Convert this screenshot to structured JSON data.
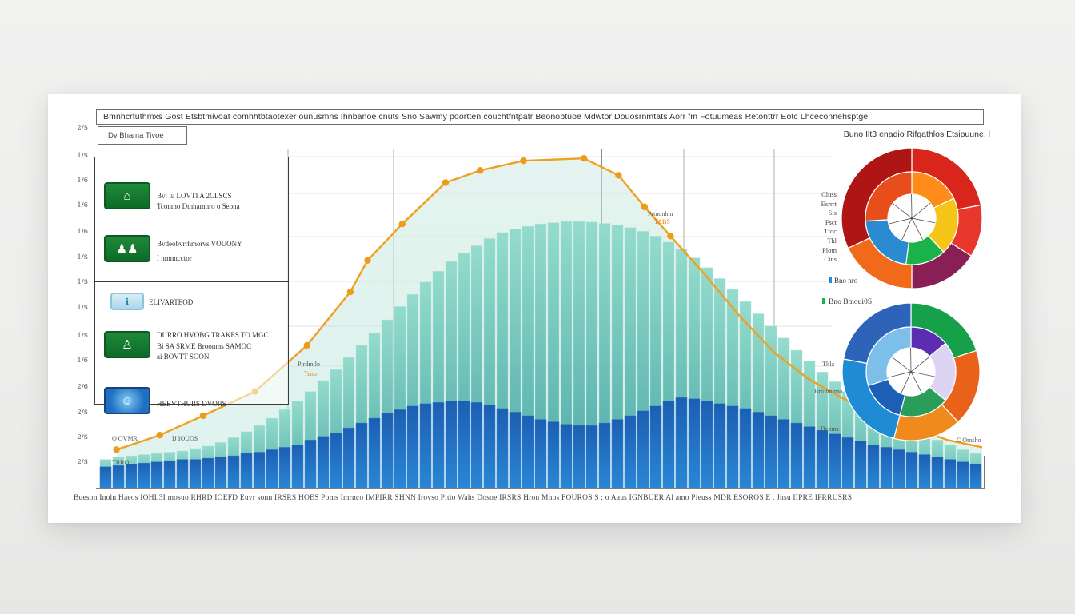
{
  "chart_data": [
    {
      "type": "bar",
      "title": "Bmnhcrtuthmxs Gost Etsbtmivoat comhhtbtaotexer ounusmns Ihnbanoe cnuts Sno Sawmy poortten couchtfntpatr Beonobtuoe Mdwtor Douosrnmtats Aorr fm Fotuumeas Retonttrr Eotc Lhceconnehsptge",
      "subtitle": "Dv Bhama Tivoe",
      "y_tick_labels": [
        "2/$",
        "1/$",
        "1/6",
        "1/6",
        "1/6",
        "1/$",
        "1/$",
        "1/$",
        "1/$",
        "1/6",
        "2/6",
        "2/$",
        "2/$",
        "2/$"
      ],
      "x_tick_labels": "Bueson Inoln Haeos IOHL3I mosuo RHRD IOEFD Euvr sonn IRSRS HOES Poms Imrnco IMPIRR SHNN Irovso Pitio Wahs Dosoe IRSRS Hron Mnos FOUROS S ; o Aaus IGNBUER Al amo Pieuss MDR ESOROS E . Jnsu IIPRE IPRRUSRS",
      "ylim": [
        0,
        14
      ],
      "x_count": 69,
      "series": [
        {
          "values": [
            1.2,
            1.3,
            1.35,
            1.4,
            1.45,
            1.5,
            1.55,
            1.65,
            1.75,
            1.9,
            2.1,
            2.35,
            2.6,
            2.9,
            3.25,
            3.6,
            4.0,
            4.45,
            4.9,
            5.4,
            5.9,
            6.4,
            6.95,
            7.5,
            8.0,
            8.5,
            8.95,
            9.35,
            9.7,
            10.0,
            10.3,
            10.55,
            10.7,
            10.8,
            10.9,
            10.95,
            11.0,
            11.0,
            10.98,
            10.92,
            10.85,
            10.75,
            10.6,
            10.4,
            10.15,
            9.85,
            9.5,
            9.1,
            8.65,
            8.2,
            7.7,
            7.2,
            6.7,
            6.2,
            5.7,
            5.25,
            4.8,
            4.4,
            4.0,
            3.65,
            3.3,
            3.0,
            2.7,
            2.45,
            2.2,
            2.0,
            1.8,
            1.6,
            1.45
          ]
        },
        {
          "values": [
            0.9,
            0.95,
            1.0,
            1.05,
            1.1,
            1.15,
            1.2,
            1.2,
            1.25,
            1.3,
            1.35,
            1.45,
            1.5,
            1.6,
            1.7,
            1.8,
            2.0,
            2.15,
            2.3,
            2.5,
            2.7,
            2.9,
            3.1,
            3.25,
            3.4,
            3.5,
            3.55,
            3.6,
            3.6,
            3.55,
            3.45,
            3.3,
            3.15,
            3.0,
            2.85,
            2.75,
            2.65,
            2.6,
            2.6,
            2.7,
            2.85,
            3.0,
            3.2,
            3.4,
            3.6,
            3.75,
            3.7,
            3.6,
            3.5,
            3.4,
            3.3,
            3.15,
            3.0,
            2.85,
            2.7,
            2.55,
            2.4,
            2.25,
            2.1,
            1.95,
            1.8,
            1.7,
            1.6,
            1.5,
            1.4,
            1.3,
            1.2,
            1.1,
            1.0
          ]
        }
      ],
      "line": {
        "points": [
          {
            "x": 2,
            "y": 1.6
          },
          {
            "x": 7,
            "y": 2.2
          },
          {
            "x": 12,
            "y": 3.0
          },
          {
            "x": 18,
            "y": 4.0
          },
          {
            "x": 24,
            "y": 5.9
          },
          {
            "x": 29,
            "y": 8.1
          },
          {
            "x": 31,
            "y": 9.4
          },
          {
            "x": 35,
            "y": 10.9
          },
          {
            "x": 40,
            "y": 12.6
          },
          {
            "x": 44,
            "y": 13.1
          },
          {
            "x": 49,
            "y": 13.5
          },
          {
            "x": 56,
            "y": 13.6
          },
          {
            "x": 60,
            "y": 12.9
          },
          {
            "x": 63,
            "y": 11.6
          },
          {
            "x": 66,
            "y": 10.4
          }
        ],
        "tail": [
          {
            "x": 66,
            "y": 10.4
          },
          {
            "x": 70,
            "y": 8.8
          },
          {
            "x": 74,
            "y": 7.1
          },
          {
            "x": 78,
            "y": 5.6
          },
          {
            "x": 82,
            "y": 4.5
          },
          {
            "x": 86,
            "y": 3.7
          },
          {
            "x": 90,
            "y": 3.0
          },
          {
            "x": 94,
            "y": 2.5
          },
          {
            "x": 98,
            "y": 2.0
          },
          {
            "x": 102,
            "y": 1.7
          }
        ],
        "color": "#f0a020"
      },
      "colors": {
        "series0": "#7ed0c4",
        "series1": "#1e66b8",
        "line": "#f0a020",
        "area": "#c9e8e0"
      },
      "grid": true
    },
    {
      "type": "pie",
      "rings": [
        {
          "values": [
            22,
            12,
            16,
            18,
            32
          ],
          "colors": [
            "#d9261c",
            "#e8382e",
            "#8a1f55",
            "#f06a1a",
            "#b01515"
          ]
        },
        {
          "values": [
            18,
            20,
            14,
            22,
            26
          ],
          "colors": [
            "#ff8c1a",
            "#f5c518",
            "#19b34a",
            "#2a8bd1",
            "#e84e1c"
          ]
        }
      ]
    },
    {
      "type": "pie",
      "rings": [
        {
          "values": [
            20,
            18,
            16,
            24,
            22
          ],
          "colors": [
            "#16a04a",
            "#e8621a",
            "#f08a1c",
            "#1f8bd4",
            "#2d63b8"
          ]
        },
        {
          "values": [
            14,
            22,
            18,
            16,
            30
          ],
          "colors": [
            "#5b2db0",
            "#dcd4f2",
            "#2a9d5a",
            "#1d5fb6",
            "#7bbfea"
          ]
        }
      ]
    }
  ],
  "header": {
    "title": "Bmnhcrtuthmxs Gost Etsbtmivoat comhhtbtaotexer ounusmns Ihnbanoe cnuts Sno Sawmy poortten couchtfntpatr Beonobtuoe Mdwtor Douosrnmtats Aorr fm Fotuumeas Retonttrr Eotc Lhceconnehsptge",
    "subtitle": "Dv Bhama Tivoe",
    "pies_title": "Buno Ilt3 enadio Rifgathlos Etsipuune. l"
  },
  "legend": [
    {
      "icon": "house-icon",
      "line1": "Bvl iu LOVTI A 2CLSCS",
      "line2": "Tconmo Dtnhamhro o Seona"
    },
    {
      "icon": "people-icon",
      "line1": "Bvdeobvrrhmorvs VOUONY",
      "line2": "I nmnncctor"
    },
    {
      "icon": "info-icon",
      "line1": "ELIVARTEOD",
      "line2": ""
    },
    {
      "icon": "person-icon",
      "line1": "DURRO HVOBG TRAKES TO MGC",
      "line2": "Bi SA SRME Broonms SAMOC",
      "line3": "ai BOVTT SOON"
    },
    {
      "icon": "globe-icon",
      "line1": "HEBVTHURS DVORS",
      "line2": ""
    }
  ],
  "annotations": {
    "left_low_a": "O OVMR",
    "left_low_b": "IJ IOUOS",
    "left_lower": "TRRO",
    "left_mid_a": "Pirdmtlo",
    "left_mid_b": "Teno",
    "peak_right_a": "Prtnonhnr",
    "peak_right_b": "TABS",
    "right_mid_a": "Tltla",
    "right_mid_b": "Brtolmmio",
    "right_mid_c": "Dcoms",
    "far_right": "C Omsho",
    "pie1_labels": [
      "Cluss",
      "Esrrrt",
      "Sis",
      "Fsct",
      "Tfoc",
      "Tkl",
      "Plotn",
      "Cins"
    ],
    "pie1_legend": "Bno nro",
    "pie2_legend": "Bno Bmoui0S"
  }
}
